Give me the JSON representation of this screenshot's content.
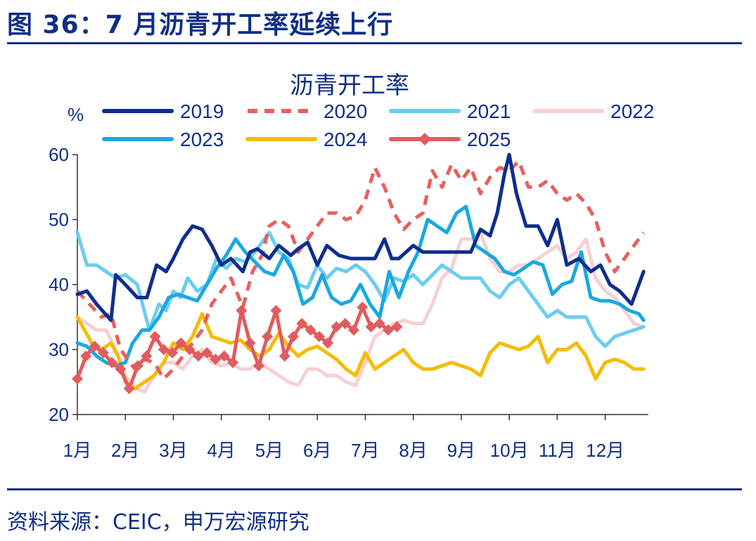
{
  "figure": {
    "title": "图 36：7 月沥青开工率延续上行",
    "source": "资料来源：CEIC，申万宏源研究"
  },
  "chart_data": {
    "type": "line",
    "title": "沥青开工率",
    "ylabel": "%",
    "xlabel": "",
    "ylim": [
      20,
      60
    ],
    "yticks": [
      "20",
      "30",
      "40",
      "50",
      "60"
    ],
    "xlim": [
      1,
      13
    ],
    "categories": [
      "1月",
      "2月",
      "3月",
      "4月",
      "5月",
      "6月",
      "7月",
      "8月",
      "9月",
      "10月",
      "11月",
      "12月"
    ],
    "series": [
      {
        "name": "2019",
        "color": "#0e2d8e",
        "style": "solid",
        "marker": "none",
        "x": [
          1,
          1.2,
          1.4,
          1.7,
          1.8,
          2.0,
          2.25,
          2.45,
          2.65,
          2.85,
          3.0,
          3.2,
          3.4,
          3.6,
          3.8,
          4.0,
          4.2,
          4.45,
          4.6,
          4.75,
          5.0,
          5.2,
          5.45,
          5.6,
          5.8,
          6.0,
          6.2,
          6.45,
          6.7,
          6.9,
          7.2,
          7.4,
          7.55,
          7.7,
          8.0,
          8.2,
          8.5,
          8.8,
          9.0,
          9.2,
          9.4,
          9.6,
          9.75,
          9.9,
          10.0,
          10.15,
          10.35,
          10.6,
          10.8,
          11.0,
          11.2,
          11.45,
          11.7,
          11.9,
          12.1,
          12.3,
          12.55,
          12.8
        ],
        "values": [
          38.5,
          39,
          37,
          34.5,
          41.5,
          40,
          38,
          38,
          43,
          42,
          44,
          47,
          49,
          48.5,
          46,
          43,
          44,
          42,
          45,
          45.5,
          44,
          46,
          44.5,
          45.5,
          46.5,
          43,
          46,
          44.5,
          44,
          44,
          44,
          47,
          44,
          44,
          46,
          45,
          45,
          45,
          45,
          45,
          48.5,
          47.5,
          51,
          57,
          60,
          54,
          49,
          49,
          46,
          50,
          43,
          44,
          42,
          43,
          40,
          39,
          37,
          42
        ]
      },
      {
        "name": "2020",
        "color": "#e8605f",
        "style": "dashed",
        "marker": "none",
        "x": [
          1,
          1.25,
          1.5,
          1.7,
          1.9,
          2.0,
          2.2,
          2.4,
          2.6,
          2.8,
          3.0,
          3.2,
          3.4,
          3.6,
          3.8,
          4.0,
          4.2,
          4.45,
          4.65,
          4.85,
          5.0,
          5.2,
          5.4,
          5.6,
          5.8,
          6.0,
          6.2,
          6.4,
          6.6,
          6.8,
          7.0,
          7.2,
          7.4,
          7.6,
          7.8,
          8.0,
          8.2,
          8.4,
          8.6,
          8.8,
          9.0,
          9.2,
          9.4,
          9.6,
          9.8,
          10.0,
          10.2,
          10.4,
          10.6,
          10.8,
          11.0,
          11.2,
          11.4,
          11.6,
          11.8,
          12.0,
          12.2,
          12.4,
          12.6,
          12.8
        ],
        "values": [
          39,
          37,
          35,
          35.5,
          30,
          29,
          27,
          28.5,
          28,
          25.5,
          27,
          29,
          31,
          33,
          37,
          39,
          41,
          36.5,
          42,
          44.5,
          49,
          50,
          49,
          45,
          47,
          49,
          51,
          51,
          50,
          50.5,
          53,
          58,
          55,
          51,
          48.5,
          50,
          51,
          57.5,
          55,
          58.5,
          56,
          58,
          54,
          56.5,
          58,
          57.5,
          59,
          55,
          55,
          56,
          54,
          53,
          54,
          52.5,
          50,
          45,
          42,
          44,
          46,
          48
        ]
      },
      {
        "name": "2021",
        "color": "#6ccdf2",
        "style": "solid",
        "marker": "none",
        "x": [
          1,
          1.2,
          1.4,
          1.6,
          1.8,
          2.0,
          2.25,
          2.5,
          2.7,
          2.85,
          3.0,
          3.15,
          3.3,
          3.5,
          3.7,
          3.9,
          4.1,
          4.3,
          4.5,
          4.7,
          4.9,
          5.0,
          5.2,
          5.4,
          5.6,
          5.8,
          6.0,
          6.2,
          6.4,
          6.6,
          6.8,
          7.0,
          7.2,
          7.4,
          7.6,
          7.8,
          8.0,
          8.2,
          8.4,
          8.6,
          8.8,
          9.0,
          9.2,
          9.4,
          9.6,
          9.8,
          10.0,
          10.2,
          10.4,
          10.6,
          10.8,
          11.0,
          11.2,
          11.4,
          11.6,
          11.8,
          12.0,
          12.2,
          12.4,
          12.6,
          12.8
        ],
        "values": [
          48,
          43,
          43,
          42,
          41,
          41.5,
          40,
          33,
          37,
          36,
          39,
          38,
          41,
          39,
          40,
          44,
          42.5,
          44,
          43.5,
          45,
          47,
          48,
          45,
          44,
          40,
          39.5,
          43,
          41,
          42.5,
          42,
          43,
          42,
          40,
          37.5,
          41,
          40.5,
          41.5,
          40,
          41.5,
          43,
          42,
          41,
          41,
          41,
          39,
          38,
          40,
          41,
          39,
          37,
          35,
          36,
          35,
          35,
          35,
          32,
          30.5,
          32,
          32.5,
          33,
          33.5
        ]
      },
      {
        "name": "2022",
        "color": "#f8d0d2",
        "style": "solid",
        "marker": "none",
        "x": [
          1,
          1.2,
          1.4,
          1.6,
          1.8,
          2.0,
          2.2,
          2.4,
          2.6,
          2.8,
          3.0,
          3.2,
          3.4,
          3.6,
          3.8,
          4.0,
          4.2,
          4.4,
          4.6,
          4.8,
          5.0,
          5.2,
          5.4,
          5.6,
          5.8,
          6.0,
          6.2,
          6.4,
          6.6,
          6.8,
          7.0,
          7.2,
          7.4,
          7.6,
          7.8,
          8.0,
          8.2,
          8.4,
          8.6,
          8.8,
          9.0,
          9.2,
          9.4,
          9.6,
          9.8,
          10.0,
          10.2,
          10.4,
          10.6,
          10.8,
          11.0,
          11.2,
          11.4,
          11.6,
          11.8,
          12.0,
          12.2,
          12.4,
          12.6,
          12.8
        ],
        "values": [
          35,
          34,
          33,
          33,
          30,
          26,
          24,
          23.5,
          26,
          28,
          28,
          27,
          29,
          30,
          28,
          27.5,
          28,
          27,
          27,
          28,
          27,
          26,
          25,
          24.5,
          27,
          27,
          26,
          26,
          25,
          24.5,
          28,
          32,
          33,
          34,
          34.5,
          34,
          34,
          37,
          41,
          42.5,
          47,
          47,
          48,
          44,
          42,
          42,
          43,
          43,
          44,
          45,
          46,
          44,
          45,
          47,
          41,
          39,
          38,
          36,
          34,
          33.5
        ]
      },
      {
        "name": "2023",
        "color": "#1ba8e0",
        "style": "solid",
        "marker": "none",
        "x": [
          1,
          1.2,
          1.4,
          1.6,
          1.8,
          2.0,
          2.15,
          2.35,
          2.5,
          2.7,
          2.9,
          3.1,
          3.3,
          3.5,
          3.7,
          3.9,
          4.1,
          4.3,
          4.5,
          4.7,
          4.9,
          5.1,
          5.3,
          5.5,
          5.7,
          5.9,
          6.1,
          6.3,
          6.5,
          6.7,
          6.9,
          7.1,
          7.3,
          7.5,
          7.7,
          7.9,
          8.1,
          8.3,
          8.5,
          8.7,
          8.9,
          9.1,
          9.3,
          9.5,
          9.7,
          9.9,
          10.1,
          10.3,
          10.5,
          10.7,
          10.9,
          11.1,
          11.3,
          11.5,
          11.7,
          11.9,
          12.1,
          12.3,
          12.5,
          12.7,
          12.8
        ],
        "values": [
          31,
          30.5,
          29,
          28,
          27.5,
          28,
          31,
          33,
          33,
          35,
          38,
          38.5,
          38,
          37.5,
          40,
          42.5,
          44.5,
          47,
          45,
          43.5,
          42,
          41.5,
          44.5,
          42,
          37,
          38,
          41.5,
          38,
          37,
          37.5,
          40,
          37,
          35,
          42,
          38,
          42,
          45,
          50,
          49,
          48,
          51,
          52,
          46,
          45,
          44,
          42,
          41.5,
          42.5,
          43.5,
          43,
          38.5,
          40,
          40.5,
          45,
          38,
          37.5,
          37.5,
          37,
          36,
          35.5,
          34.5
        ]
      },
      {
        "name": "2024",
        "color": "#f5bc00",
        "style": "solid",
        "marker": "none",
        "x": [
          1,
          1.15,
          1.3,
          1.5,
          1.7,
          1.85,
          2.0,
          2.2,
          2.4,
          2.6,
          2.8,
          3.0,
          3.2,
          3.4,
          3.6,
          3.8,
          4.0,
          4.2,
          4.4,
          4.6,
          4.8,
          5.0,
          5.2,
          5.4,
          5.6,
          5.8,
          6.0,
          6.2,
          6.4,
          6.6,
          6.8,
          7.0,
          7.2,
          7.4,
          7.6,
          7.8,
          8.0,
          8.2,
          8.4,
          8.6,
          8.8,
          9.0,
          9.2,
          9.4,
          9.6,
          9.8,
          10.0,
          10.2,
          10.4,
          10.6,
          10.8,
          11.0,
          11.2,
          11.4,
          11.6,
          11.8,
          12.0,
          12.2,
          12.4,
          12.6,
          12.8
        ],
        "values": [
          35,
          33,
          31,
          30,
          31,
          29,
          25,
          24,
          25,
          26,
          28,
          31,
          30,
          32,
          35.5,
          32,
          31.5,
          31,
          31.5,
          30,
          29,
          30,
          32.5,
          30.5,
          29,
          30,
          30.5,
          29.5,
          28.5,
          27,
          26,
          29.5,
          27,
          28,
          29,
          30,
          28,
          27,
          27,
          27.5,
          28,
          27.5,
          27,
          26,
          29.5,
          31,
          30.5,
          30,
          30.5,
          32,
          28,
          30,
          30,
          31,
          29,
          25.5,
          28,
          28.5,
          28,
          27,
          27
        ]
      },
      {
        "name": "2025",
        "color": "#e05c5f",
        "style": "solid",
        "marker": "diamond",
        "x": [
          1,
          1.18,
          1.36,
          1.54,
          1.72,
          1.9,
          2.08,
          2.26,
          2.44,
          2.62,
          2.8,
          2.98,
          3.16,
          3.34,
          3.52,
          3.7,
          3.88,
          4.06,
          4.24,
          4.42,
          4.6,
          4.78,
          4.96,
          5.14,
          5.32,
          5.5,
          5.68,
          5.86,
          6.04,
          6.22,
          6.4,
          6.58,
          6.76,
          6.94,
          7.12,
          7.3,
          7.48,
          7.66
        ],
        "values": [
          25.5,
          29,
          30.5,
          29.5,
          28,
          27,
          24,
          27.5,
          29,
          32,
          30,
          29.5,
          31,
          30,
          29,
          29.5,
          28.5,
          29,
          28,
          36,
          31,
          27.5,
          32,
          36,
          29,
          32,
          34,
          33,
          32,
          31,
          33.5,
          34,
          33,
          36.5,
          33.5,
          34,
          33,
          33.5
        ]
      }
    ]
  }
}
